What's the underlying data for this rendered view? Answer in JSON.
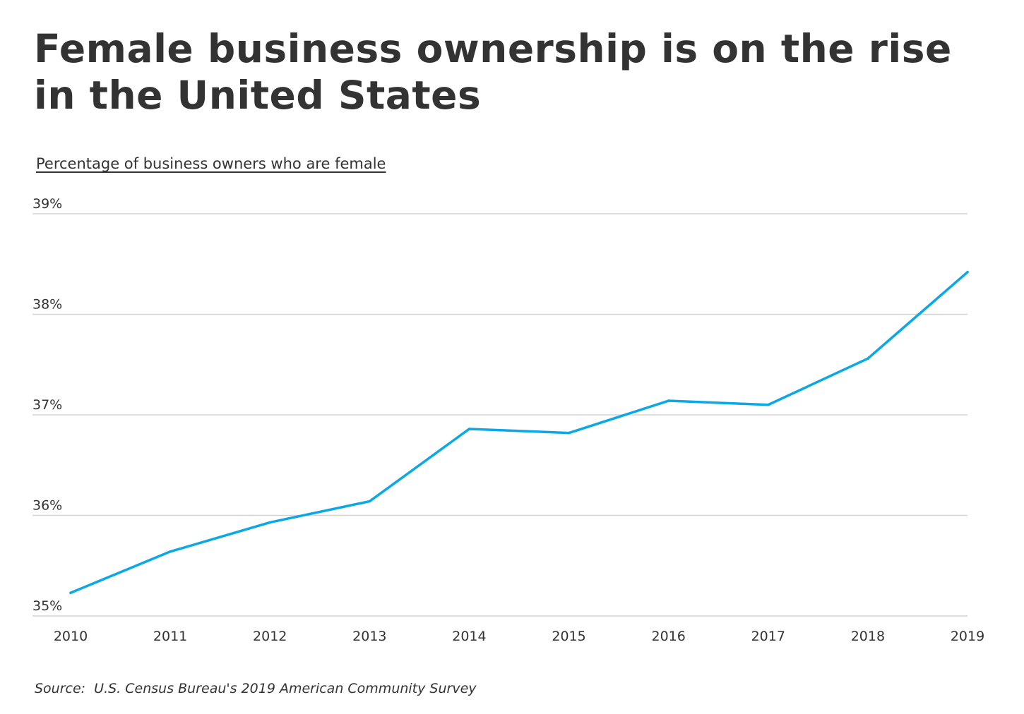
{
  "title": "Female business ownership is on the rise in the United States",
  "source": {
    "prefix": "Source:",
    "text": "U.S. Census Bureau's 2019 American Community Survey"
  },
  "colors": {
    "line": "#0aa8e6",
    "grid": "#d3d3d3",
    "text": "#333333"
  },
  "chart_data": {
    "type": "line",
    "title": "Female business ownership is on the rise in the United States",
    "subtitle": "Percentage of business owners who are female",
    "xlabel": "",
    "ylabel": "",
    "x": [
      "2010",
      "2011",
      "2012",
      "2013",
      "2014",
      "2015",
      "2016",
      "2017",
      "2018",
      "2019"
    ],
    "series": [
      {
        "values": [
          35.23,
          35.64,
          35.93,
          36.14,
          36.86,
          36.82,
          37.14,
          37.1,
          37.56,
          38.42
        ]
      }
    ],
    "ylim": [
      35,
      39
    ],
    "yticks": [
      35,
      36,
      37,
      38,
      39
    ],
    "ytick_labels": [
      "35%",
      "36%",
      "37%",
      "38%",
      "39%"
    ],
    "grid": "horizontal",
    "legend": "none"
  }
}
